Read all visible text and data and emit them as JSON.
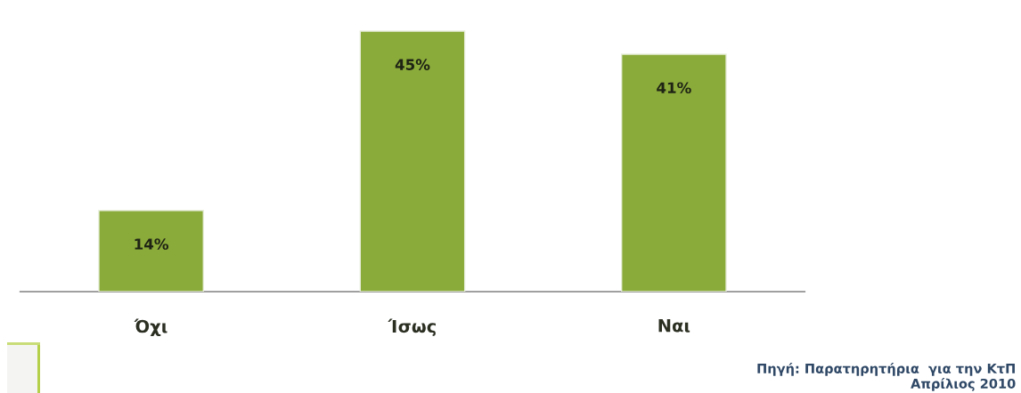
{
  "chart_data": {
    "type": "bar",
    "categories": [
      "Όχι",
      "Ίσως",
      "Ναι"
    ],
    "values": [
      14,
      45,
      41
    ],
    "value_labels": [
      "14%",
      "45%",
      "41%"
    ],
    "color": "#8aaa3a",
    "grid": false,
    "legend": false,
    "annotations": [
      "Πηγή: Παρατηρητήρια  για την ΚτΠ\nΑπρίλιος 2010"
    ]
  }
}
